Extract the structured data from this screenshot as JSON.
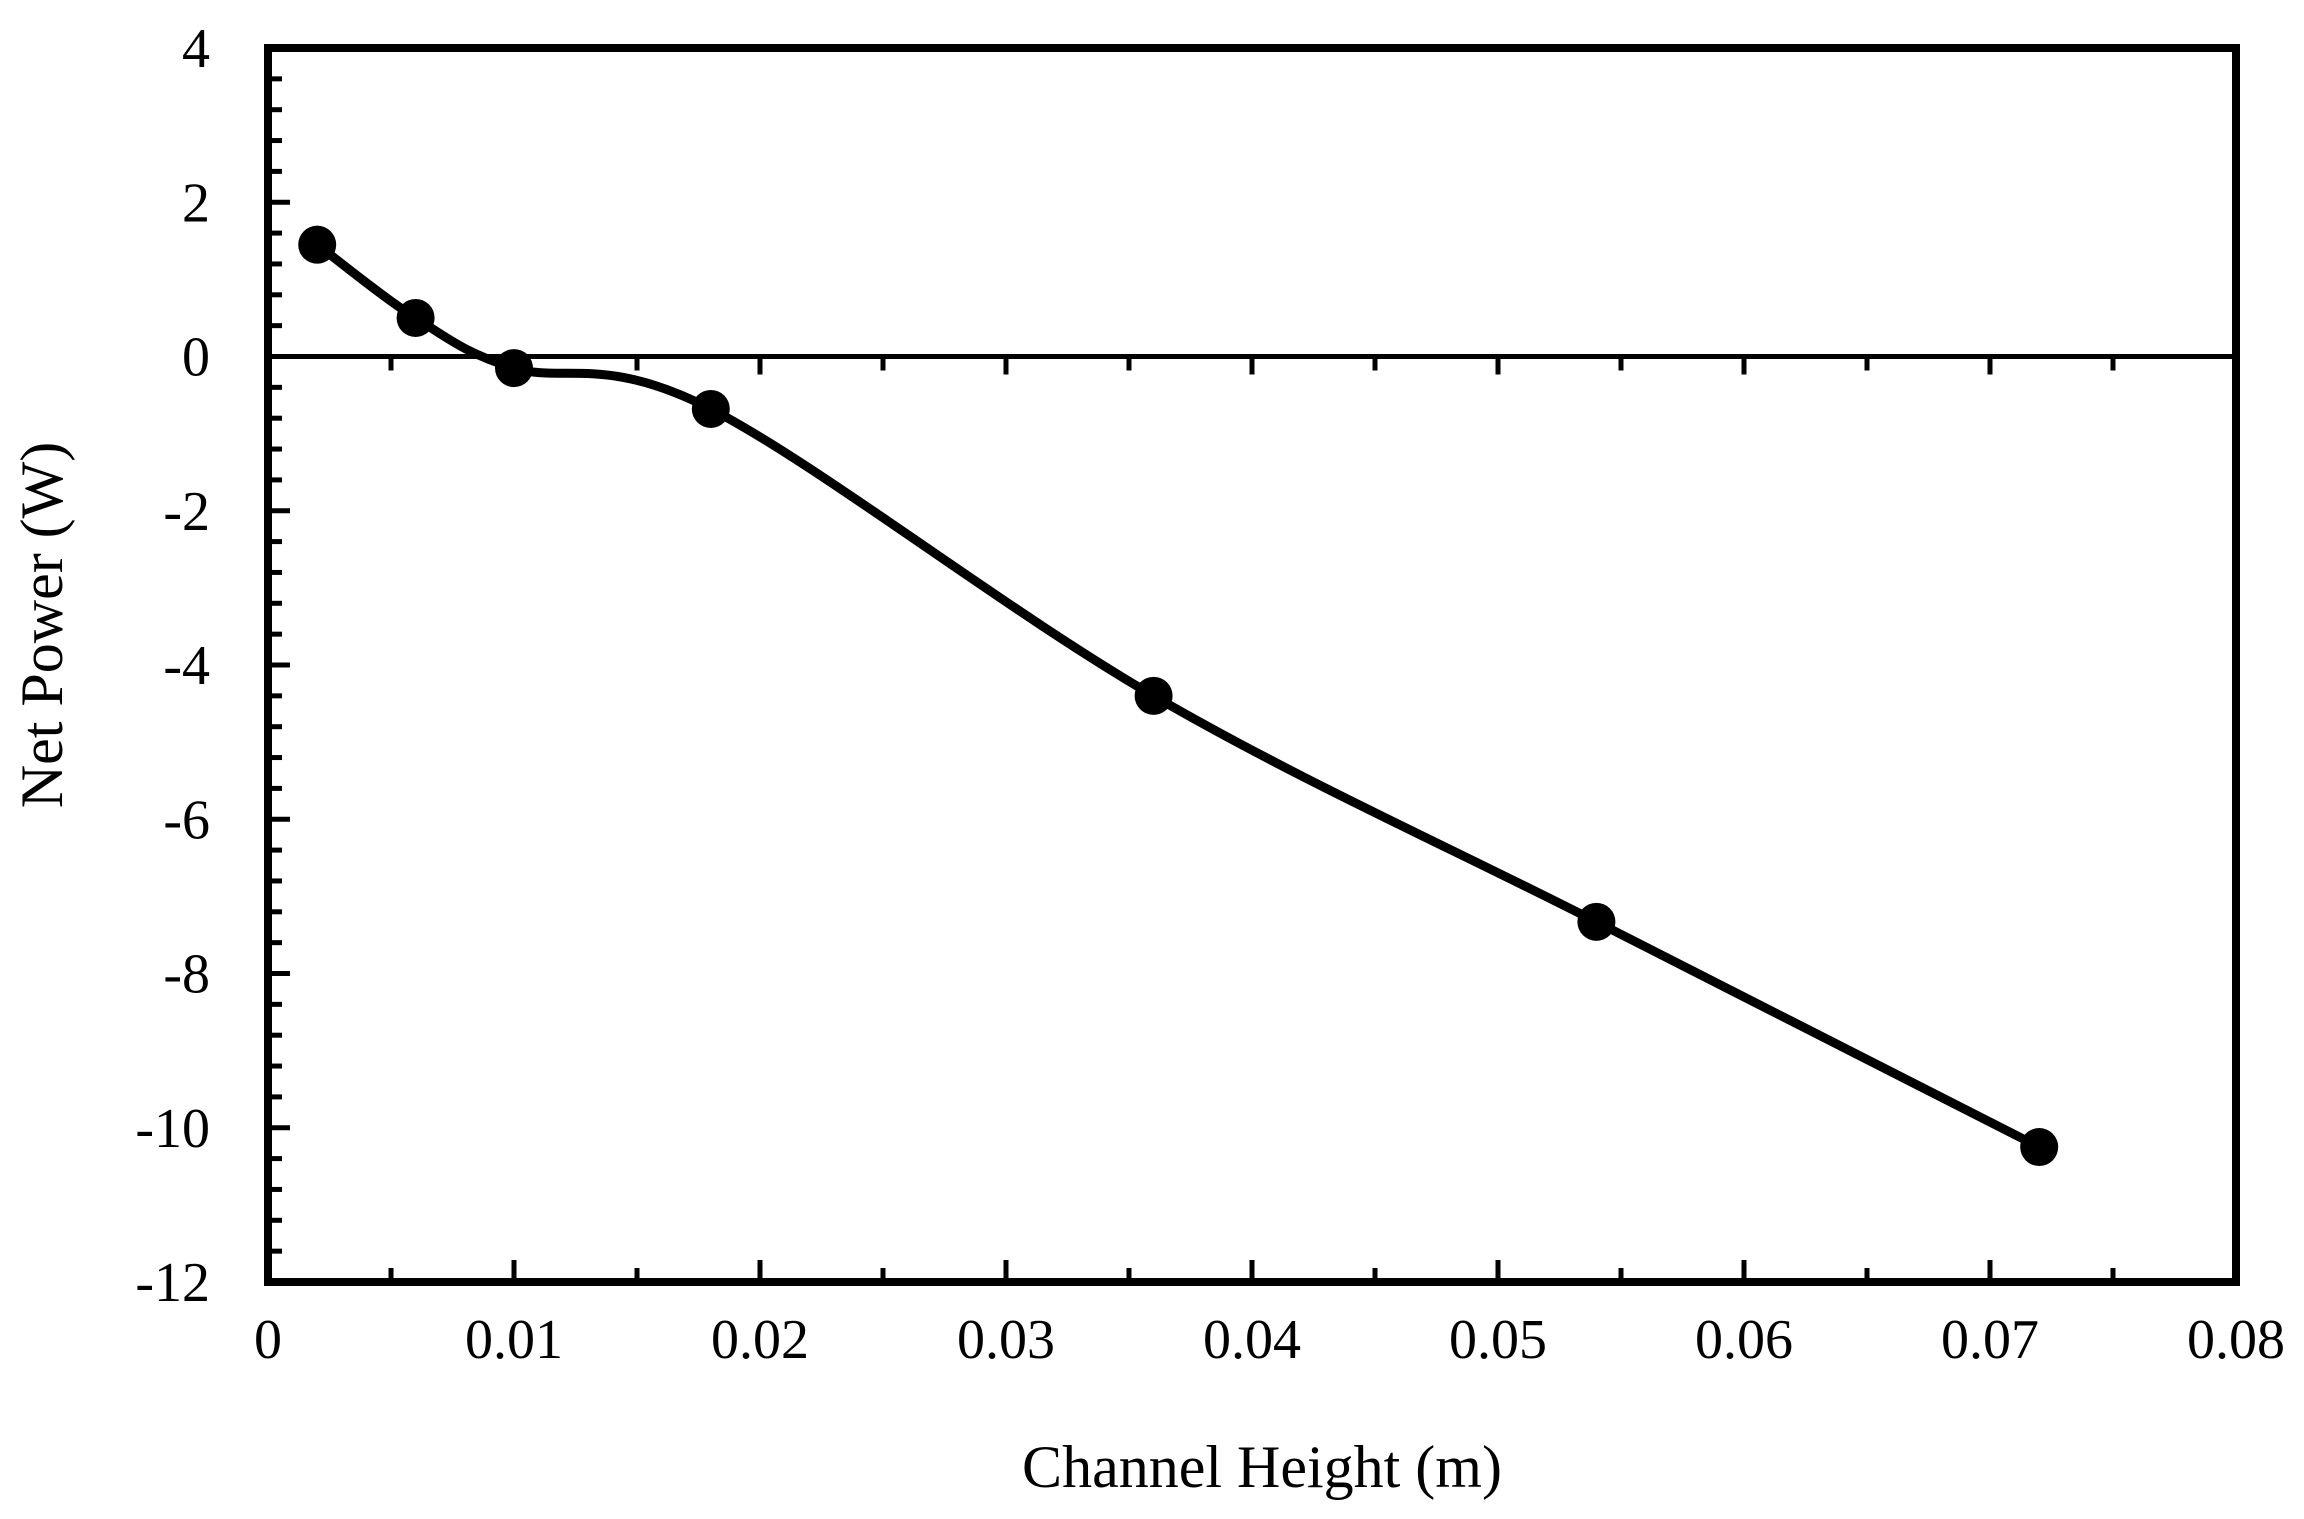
{
  "chart_data": {
    "type": "line",
    "title": "",
    "xlabel": "Channel Height (m)",
    "ylabel": "Net Power (W)",
    "xlim": [
      0,
      0.08
    ],
    "ylim": [
      -12,
      4
    ],
    "x_ticks": [
      0,
      0.01,
      0.02,
      0.03,
      0.04,
      0.05,
      0.06,
      0.07,
      0.08
    ],
    "x_tick_labels": [
      "0",
      "0.01",
      "0.02",
      "0.03",
      "0.04",
      "0.05",
      "0.06",
      "0.07",
      "0.08"
    ],
    "y_ticks": [
      4,
      2,
      0,
      -2,
      -4,
      -6,
      -8,
      -10,
      -12
    ],
    "y_tick_labels": [
      "4",
      "2",
      "0",
      "-2",
      "-4",
      "-6",
      "-8",
      "-10",
      "-12"
    ],
    "x_minor_step": 0.005,
    "y_minor_step": 0.4,
    "zero_line": true,
    "grid": false,
    "legend": "none",
    "smooth": true,
    "series": [
      {
        "x": [
          0.002,
          0.006,
          0.01,
          0.018,
          0.036,
          0.054,
          0.072
        ],
        "y": [
          1.45,
          0.5,
          -0.15,
          -0.68,
          -4.4,
          -7.33,
          -10.25
        ],
        "color": "#000000",
        "marker": "circle"
      }
    ]
  }
}
